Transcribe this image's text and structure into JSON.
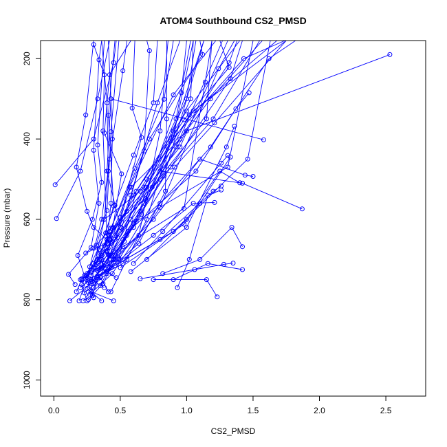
{
  "chart_data": {
    "type": "line",
    "title": "ATOM4 Southbound CS2_PMSD",
    "xlabel": "CS2_PMSD",
    "ylabel": "Pressure (mbar)",
    "xlim": [
      -0.1,
      2.8
    ],
    "ylim": [
      1040,
      155
    ],
    "y_inverted": true,
    "xticks": [
      "0.0",
      "0.5",
      "1.0",
      "1.5",
      "2.0",
      "2.5"
    ],
    "yticks": [
      "200",
      "400",
      "600",
      "800",
      "1000"
    ],
    "grid": false,
    "legend": "none",
    "color": "#0000ff",
    "profiles": [
      [
        [
          0.12,
          803
        ],
        [
          0.28,
          760
        ],
        [
          0.42,
          690
        ],
        [
          0.58,
          540
        ],
        [
          0.78,
          310
        ],
        [
          0.95,
          155
        ]
      ],
      [
        [
          0.19,
          803
        ],
        [
          0.25,
          745
        ],
        [
          0.36,
          600
        ],
        [
          0.42,
          450
        ],
        [
          0.52,
          230
        ],
        [
          0.55,
          155
        ]
      ],
      [
        [
          0.22,
          803
        ],
        [
          0.3,
          770
        ],
        [
          0.43,
          690
        ],
        [
          0.68,
          520
        ],
        [
          0.92,
          350
        ],
        [
          1.03,
          155
        ]
      ],
      [
        [
          0.25,
          803
        ],
        [
          0.21,
          762
        ],
        [
          0.33,
          700
        ],
        [
          0.42,
          630
        ],
        [
          0.72,
          400
        ],
        [
          1.12,
          190
        ],
        [
          1.1,
          155
        ]
      ],
      [
        [
          0.36,
          803
        ],
        [
          0.25,
          772
        ],
        [
          0.28,
          740
        ],
        [
          0.4,
          680
        ],
        [
          0.6,
          540
        ],
        [
          1.0,
          330
        ],
        [
          1.4,
          155
        ]
      ],
      [
        [
          0.45,
          803
        ],
        [
          0.28,
          780
        ],
        [
          0.3,
          720
        ],
        [
          0.42,
          650
        ],
        [
          0.8,
          500
        ],
        [
          1.2,
          350
        ],
        [
          1.55,
          155
        ]
      ],
      [
        [
          0.26,
          800
        ],
        [
          0.37,
          760
        ],
        [
          0.55,
          640
        ],
        [
          0.88,
          470
        ],
        [
          1.33,
          250
        ],
        [
          1.42,
          155
        ]
      ],
      [
        [
          0.3,
          795
        ],
        [
          0.25,
          750
        ],
        [
          0.34,
          675
        ],
        [
          0.46,
          565
        ],
        [
          0.6,
          440
        ],
        [
          0.75,
          310
        ],
        [
          0.78,
          155
        ]
      ],
      [
        [
          0.29,
          790
        ],
        [
          0.33,
          745
        ],
        [
          0.49,
          700
        ],
        [
          0.91,
          470
        ],
        [
          1.21,
          360
        ],
        [
          1.75,
          155
        ]
      ],
      [
        [
          0.27,
          787
        ],
        [
          0.44,
          735
        ],
        [
          0.8,
          560
        ],
        [
          1.18,
          420
        ],
        [
          1.62,
          200
        ],
        [
          1.82,
          155
        ]
      ],
      [
        [
          0.17,
          780
        ],
        [
          0.21,
          750
        ],
        [
          0.3,
          710
        ],
        [
          0.45,
          620
        ],
        [
          0.8,
          480
        ],
        [
          1.42,
          510
        ],
        [
          1.87,
          574
        ]
      ],
      [
        [
          0.23,
          783
        ],
        [
          0.4,
          735
        ],
        [
          0.52,
          650
        ],
        [
          1.0,
          380
        ],
        [
          2.53,
          190
        ]
      ],
      [
        [
          0.41,
          780
        ],
        [
          0.35,
          745
        ],
        [
          0.3,
          720
        ],
        [
          0.38,
          600
        ],
        [
          0.41,
          480
        ],
        [
          0.4,
          310
        ],
        [
          0.36,
          155
        ]
      ],
      [
        [
          0.38,
          770
        ],
        [
          0.23,
          740
        ],
        [
          0.18,
          690
        ],
        [
          0.29,
          600
        ],
        [
          0.36,
          508
        ],
        [
          0.33,
          415
        ],
        [
          0.38,
          155
        ]
      ],
      [
        [
          0.35,
          765
        ],
        [
          0.42,
          720
        ],
        [
          0.4,
          660
        ],
        [
          0.43,
          560
        ],
        [
          0.44,
          400
        ],
        [
          0.43,
          300
        ],
        [
          0.41,
          155
        ]
      ],
      [
        [
          0.31,
          760
        ],
        [
          0.36,
          700
        ],
        [
          0.4,
          650
        ],
        [
          0.37,
          380
        ],
        [
          0.38,
          240
        ],
        [
          0.3,
          165
        ]
      ],
      [
        [
          0.16,
          762
        ],
        [
          0.11,
          737
        ],
        [
          0.28,
          670
        ],
        [
          0.34,
          560
        ],
        [
          0.3,
          428
        ],
        [
          0.34,
          203
        ],
        [
          0.36,
          155
        ]
      ],
      [
        [
          0.29,
          755
        ],
        [
          0.43,
          720
        ],
        [
          0.64,
          660
        ],
        [
          0.84,
          530
        ],
        [
          0.85,
          350
        ],
        [
          0.85,
          155
        ]
      ],
      [
        [
          0.21,
          748
        ],
        [
          0.34,
          700
        ],
        [
          0.68,
          560
        ],
        [
          0.92,
          420
        ],
        [
          1.27,
          155
        ]
      ],
      [
        [
          0.24,
          740
        ],
        [
          0.38,
          710
        ],
        [
          0.65,
          580
        ],
        [
          1.03,
          300
        ],
        [
          1.05,
          155
        ]
      ],
      [
        [
          0.2,
          750
        ],
        [
          0.36,
          720
        ],
        [
          0.58,
          600
        ],
        [
          0.88,
          405
        ],
        [
          1.43,
          200
        ],
        [
          1.74,
          155
        ]
      ],
      [
        [
          0.47,
          745
        ],
        [
          0.32,
          712
        ],
        [
          0.4,
          650
        ],
        [
          0.7,
          500
        ],
        [
          1.05,
          330
        ],
        [
          1.75,
          155
        ]
      ],
      [
        [
          0.25,
          735
        ],
        [
          0.41,
          688
        ],
        [
          0.51,
          487
        ],
        [
          0.38,
          385
        ],
        [
          0.42,
          240
        ],
        [
          0.58,
          155
        ]
      ],
      [
        [
          0.33,
          728
        ],
        [
          0.49,
          697
        ],
        [
          0.62,
          530
        ],
        [
          0.98,
          352
        ],
        [
          1.32,
          222
        ],
        [
          1.25,
          155
        ]
      ],
      [
        [
          0.38,
          722
        ],
        [
          0.32,
          664
        ],
        [
          0.4,
          578
        ],
        [
          0.43,
          382
        ],
        [
          0.49,
          155
        ]
      ],
      [
        [
          0.27,
          718
        ],
        [
          0.39,
          634
        ],
        [
          0.45,
          567
        ],
        [
          0.41,
          341
        ],
        [
          0.46,
          155
        ]
      ],
      [
        [
          0.36,
          712
        ],
        [
          0.51,
          622
        ],
        [
          0.68,
          430
        ],
        [
          0.72,
          180
        ],
        [
          0.7,
          155
        ]
      ],
      [
        [
          0.42,
          708
        ],
        [
          0.6,
          610
        ],
        [
          0.83,
          492
        ],
        [
          1.13,
          155
        ]
      ],
      [
        [
          0.33,
          700
        ],
        [
          0.48,
          645
        ],
        [
          0.7,
          520
        ],
        [
          1.0,
          300
        ],
        [
          1.07,
          155
        ]
      ],
      [
        [
          0.44,
          694
        ],
        [
          0.66,
          588
        ],
        [
          0.9,
          395
        ],
        [
          1.05,
          155
        ]
      ],
      [
        [
          0.24,
          684
        ],
        [
          0.46,
          650
        ],
        [
          0.57,
          520
        ],
        [
          0.9,
          290
        ],
        [
          1.22,
          155
        ]
      ],
      [
        [
          0.4,
          678
        ],
        [
          0.5,
          595
        ],
        [
          0.66,
          396
        ],
        [
          0.59,
          323
        ],
        [
          0.61,
          155
        ]
      ],
      [
        [
          0.3,
          672
        ],
        [
          0.43,
          622
        ],
        [
          0.61,
          473
        ],
        [
          0.83,
          301
        ],
        [
          0.9,
          155
        ]
      ],
      [
        [
          0.38,
          665
        ],
        [
          0.55,
          580
        ],
        [
          0.95,
          420
        ],
        [
          1.31,
          155
        ]
      ],
      [
        [
          0.42,
          648
        ],
        [
          0.58,
          520
        ],
        [
          0.95,
          400
        ],
        [
          1.32,
          210
        ],
        [
          1.38,
          155
        ]
      ],
      [
        [
          0.41,
          638
        ],
        [
          0.69,
          548
        ],
        [
          1.02,
          340
        ],
        [
          1.68,
          155
        ]
      ],
      [
        [
          0.44,
          622
        ],
        [
          0.74,
          520
        ],
        [
          1.15,
          350
        ],
        [
          1.19,
          155
        ]
      ],
      [
        [
          0.38,
          600
        ],
        [
          0.65,
          530
        ],
        [
          1.18,
          300
        ],
        [
          1.57,
          155
        ]
      ],
      [
        [
          0.43,
          660
        ],
        [
          0.3,
          620
        ],
        [
          0.25,
          580
        ],
        [
          0.17,
          470
        ],
        [
          0.24,
          340
        ],
        [
          0.3,
          155
        ]
      ],
      [
        [
          0.36,
          690
        ],
        [
          0.5,
          620
        ],
        [
          0.4,
          480
        ],
        [
          0.43,
          300
        ],
        [
          1.58,
          402
        ]
      ],
      [
        [
          0.45,
          700
        ],
        [
          0.75,
          600
        ],
        [
          1.1,
          450
        ],
        [
          1.44,
          490
        ],
        [
          1.5,
          493
        ]
      ],
      [
        [
          0.33,
          740
        ],
        [
          0.8,
          650
        ],
        [
          1.2,
          530
        ],
        [
          1.26,
          517
        ]
      ],
      [
        [
          0.4,
          730
        ],
        [
          0.75,
          640
        ],
        [
          1.05,
          560
        ],
        [
          1.21,
          558
        ]
      ],
      [
        [
          0.58,
          730
        ],
        [
          1.0,
          620
        ],
        [
          1.3,
          420
        ],
        [
          1.36,
          368
        ]
      ],
      [
        [
          0.5,
          720
        ],
        [
          0.98,
          612
        ],
        [
          1.1,
          560
        ],
        [
          1.33,
          445
        ]
      ],
      [
        [
          0.6,
          710
        ],
        [
          0.82,
          630
        ],
        [
          1.26,
          460
        ],
        [
          1.31,
          441
        ]
      ],
      [
        [
          0.7,
          700
        ],
        [
          1.0,
          600
        ],
        [
          1.25,
          480
        ],
        [
          1.4,
          509
        ]
      ],
      [
        [
          0.82,
          735
        ],
        [
          1.1,
          700
        ],
        [
          1.34,
          620
        ],
        [
          1.42,
          668
        ]
      ],
      [
        [
          0.9,
          750
        ],
        [
          1.16,
          710
        ],
        [
          1.42,
          725
        ]
      ],
      [
        [
          0.93,
          770
        ],
        [
          1.02,
          700
        ],
        [
          1.16,
          540
        ],
        [
          1.26,
          527
        ]
      ],
      [
        [
          0.65,
          748
        ],
        [
          1.06,
          725
        ],
        [
          1.28,
          712
        ],
        [
          1.35,
          709
        ]
      ],
      [
        [
          0.75,
          750
        ],
        [
          1.15,
          750
        ],
        [
          1.23,
          793
        ]
      ],
      [
        [
          0.02,
          598
        ],
        [
          0.2,
          480
        ],
        [
          0.33,
          300
        ],
        [
          0.42,
          155
        ]
      ],
      [
        [
          0.01,
          514
        ],
        [
          0.3,
          400
        ],
        [
          0.45,
          210
        ],
        [
          0.47,
          155
        ]
      ],
      [
        [
          0.43,
          780
        ],
        [
          0.55,
          700
        ],
        [
          0.7,
          600
        ],
        [
          0.9,
          380
        ],
        [
          1.13,
          155
        ]
      ],
      [
        [
          0.2,
          770
        ],
        [
          0.46,
          700
        ],
        [
          0.64,
          640
        ],
        [
          0.8,
          380
        ],
        [
          0.86,
          155
        ]
      ],
      [
        [
          0.26,
          757
        ],
        [
          0.52,
          710
        ],
        [
          0.8,
          570
        ],
        [
          1.24,
          225
        ],
        [
          1.36,
          155
        ]
      ],
      [
        [
          0.3,
          748
        ],
        [
          0.45,
          680
        ],
        [
          0.6,
          620
        ],
        [
          0.96,
          285
        ],
        [
          1.0,
          155
        ]
      ],
      [
        [
          0.35,
          742
        ],
        [
          0.52,
          668
        ],
        [
          0.98,
          573
        ],
        [
          1.14,
          258
        ],
        [
          1.19,
          155
        ]
      ],
      [
        [
          0.28,
          732
        ],
        [
          0.45,
          700
        ],
        [
          0.56,
          630
        ],
        [
          1.07,
          480
        ],
        [
          1.37,
          325
        ],
        [
          1.47,
          285
        ]
      ],
      [
        [
          0.34,
          725
        ],
        [
          0.53,
          655
        ],
        [
          0.62,
          605
        ],
        [
          1.31,
          470
        ],
        [
          1.5,
          155
        ]
      ],
      [
        [
          0.46,
          715
        ],
        [
          0.9,
          630
        ],
        [
          1.46,
          450
        ],
        [
          1.63,
          155
        ]
      ]
    ]
  }
}
